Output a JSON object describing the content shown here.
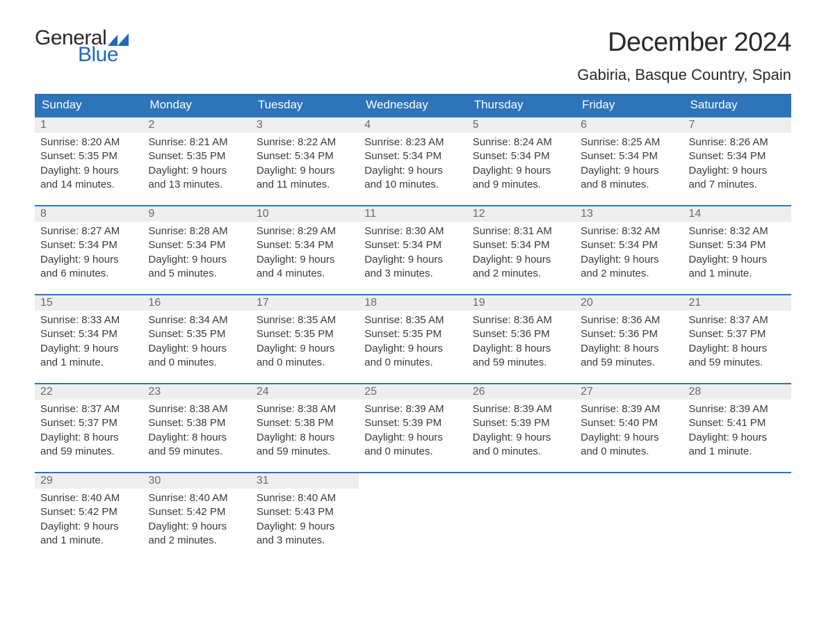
{
  "logo": {
    "general": "General",
    "blue": "Blue"
  },
  "colors": {
    "header_bg": "#2d74b9",
    "header_text": "#ffffff",
    "row_border": "#2d74b9",
    "daynum_bg": "#eeeeee",
    "daynum_text": "#6a6a6a",
    "body_text": "#3a3a3a",
    "logo_blue": "#1f6bb5",
    "logo_dark": "#2a2a2a",
    "background": "#ffffff"
  },
  "title": "December 2024",
  "location": "Gabiria, Basque Country, Spain",
  "day_headers": [
    "Sunday",
    "Monday",
    "Tuesday",
    "Wednesday",
    "Thursday",
    "Friday",
    "Saturday"
  ],
  "weeks": [
    [
      {
        "n": "1",
        "sunrise": "Sunrise: 8:20 AM",
        "sunset": "Sunset: 5:35 PM",
        "day": "Daylight: 9 hours and 14 minutes."
      },
      {
        "n": "2",
        "sunrise": "Sunrise: 8:21 AM",
        "sunset": "Sunset: 5:35 PM",
        "day": "Daylight: 9 hours and 13 minutes."
      },
      {
        "n": "3",
        "sunrise": "Sunrise: 8:22 AM",
        "sunset": "Sunset: 5:34 PM",
        "day": "Daylight: 9 hours and 11 minutes."
      },
      {
        "n": "4",
        "sunrise": "Sunrise: 8:23 AM",
        "sunset": "Sunset: 5:34 PM",
        "day": "Daylight: 9 hours and 10 minutes."
      },
      {
        "n": "5",
        "sunrise": "Sunrise: 8:24 AM",
        "sunset": "Sunset: 5:34 PM",
        "day": "Daylight: 9 hours and 9 minutes."
      },
      {
        "n": "6",
        "sunrise": "Sunrise: 8:25 AM",
        "sunset": "Sunset: 5:34 PM",
        "day": "Daylight: 9 hours and 8 minutes."
      },
      {
        "n": "7",
        "sunrise": "Sunrise: 8:26 AM",
        "sunset": "Sunset: 5:34 PM",
        "day": "Daylight: 9 hours and 7 minutes."
      }
    ],
    [
      {
        "n": "8",
        "sunrise": "Sunrise: 8:27 AM",
        "sunset": "Sunset: 5:34 PM",
        "day": "Daylight: 9 hours and 6 minutes."
      },
      {
        "n": "9",
        "sunrise": "Sunrise: 8:28 AM",
        "sunset": "Sunset: 5:34 PM",
        "day": "Daylight: 9 hours and 5 minutes."
      },
      {
        "n": "10",
        "sunrise": "Sunrise: 8:29 AM",
        "sunset": "Sunset: 5:34 PM",
        "day": "Daylight: 9 hours and 4 minutes."
      },
      {
        "n": "11",
        "sunrise": "Sunrise: 8:30 AM",
        "sunset": "Sunset: 5:34 PM",
        "day": "Daylight: 9 hours and 3 minutes."
      },
      {
        "n": "12",
        "sunrise": "Sunrise: 8:31 AM",
        "sunset": "Sunset: 5:34 PM",
        "day": "Daylight: 9 hours and 2 minutes."
      },
      {
        "n": "13",
        "sunrise": "Sunrise: 8:32 AM",
        "sunset": "Sunset: 5:34 PM",
        "day": "Daylight: 9 hours and 2 minutes."
      },
      {
        "n": "14",
        "sunrise": "Sunrise: 8:32 AM",
        "sunset": "Sunset: 5:34 PM",
        "day": "Daylight: 9 hours and 1 minute."
      }
    ],
    [
      {
        "n": "15",
        "sunrise": "Sunrise: 8:33 AM",
        "sunset": "Sunset: 5:34 PM",
        "day": "Daylight: 9 hours and 1 minute."
      },
      {
        "n": "16",
        "sunrise": "Sunrise: 8:34 AM",
        "sunset": "Sunset: 5:35 PM",
        "day": "Daylight: 9 hours and 0 minutes."
      },
      {
        "n": "17",
        "sunrise": "Sunrise: 8:35 AM",
        "sunset": "Sunset: 5:35 PM",
        "day": "Daylight: 9 hours and 0 minutes."
      },
      {
        "n": "18",
        "sunrise": "Sunrise: 8:35 AM",
        "sunset": "Sunset: 5:35 PM",
        "day": "Daylight: 9 hours and 0 minutes."
      },
      {
        "n": "19",
        "sunrise": "Sunrise: 8:36 AM",
        "sunset": "Sunset: 5:36 PM",
        "day": "Daylight: 8 hours and 59 minutes."
      },
      {
        "n": "20",
        "sunrise": "Sunrise: 8:36 AM",
        "sunset": "Sunset: 5:36 PM",
        "day": "Daylight: 8 hours and 59 minutes."
      },
      {
        "n": "21",
        "sunrise": "Sunrise: 8:37 AM",
        "sunset": "Sunset: 5:37 PM",
        "day": "Daylight: 8 hours and 59 minutes."
      }
    ],
    [
      {
        "n": "22",
        "sunrise": "Sunrise: 8:37 AM",
        "sunset": "Sunset: 5:37 PM",
        "day": "Daylight: 8 hours and 59 minutes."
      },
      {
        "n": "23",
        "sunrise": "Sunrise: 8:38 AM",
        "sunset": "Sunset: 5:38 PM",
        "day": "Daylight: 8 hours and 59 minutes."
      },
      {
        "n": "24",
        "sunrise": "Sunrise: 8:38 AM",
        "sunset": "Sunset: 5:38 PM",
        "day": "Daylight: 8 hours and 59 minutes."
      },
      {
        "n": "25",
        "sunrise": "Sunrise: 8:39 AM",
        "sunset": "Sunset: 5:39 PM",
        "day": "Daylight: 9 hours and 0 minutes."
      },
      {
        "n": "26",
        "sunrise": "Sunrise: 8:39 AM",
        "sunset": "Sunset: 5:39 PM",
        "day": "Daylight: 9 hours and 0 minutes."
      },
      {
        "n": "27",
        "sunrise": "Sunrise: 8:39 AM",
        "sunset": "Sunset: 5:40 PM",
        "day": "Daylight: 9 hours and 0 minutes."
      },
      {
        "n": "28",
        "sunrise": "Sunrise: 8:39 AM",
        "sunset": "Sunset: 5:41 PM",
        "day": "Daylight: 9 hours and 1 minute."
      }
    ],
    [
      {
        "n": "29",
        "sunrise": "Sunrise: 8:40 AM",
        "sunset": "Sunset: 5:42 PM",
        "day": "Daylight: 9 hours and 1 minute."
      },
      {
        "n": "30",
        "sunrise": "Sunrise: 8:40 AM",
        "sunset": "Sunset: 5:42 PM",
        "day": "Daylight: 9 hours and 2 minutes."
      },
      {
        "n": "31",
        "sunrise": "Sunrise: 8:40 AM",
        "sunset": "Sunset: 5:43 PM",
        "day": "Daylight: 9 hours and 3 minutes."
      },
      {
        "empty": true
      },
      {
        "empty": true
      },
      {
        "empty": true
      },
      {
        "empty": true
      }
    ]
  ]
}
